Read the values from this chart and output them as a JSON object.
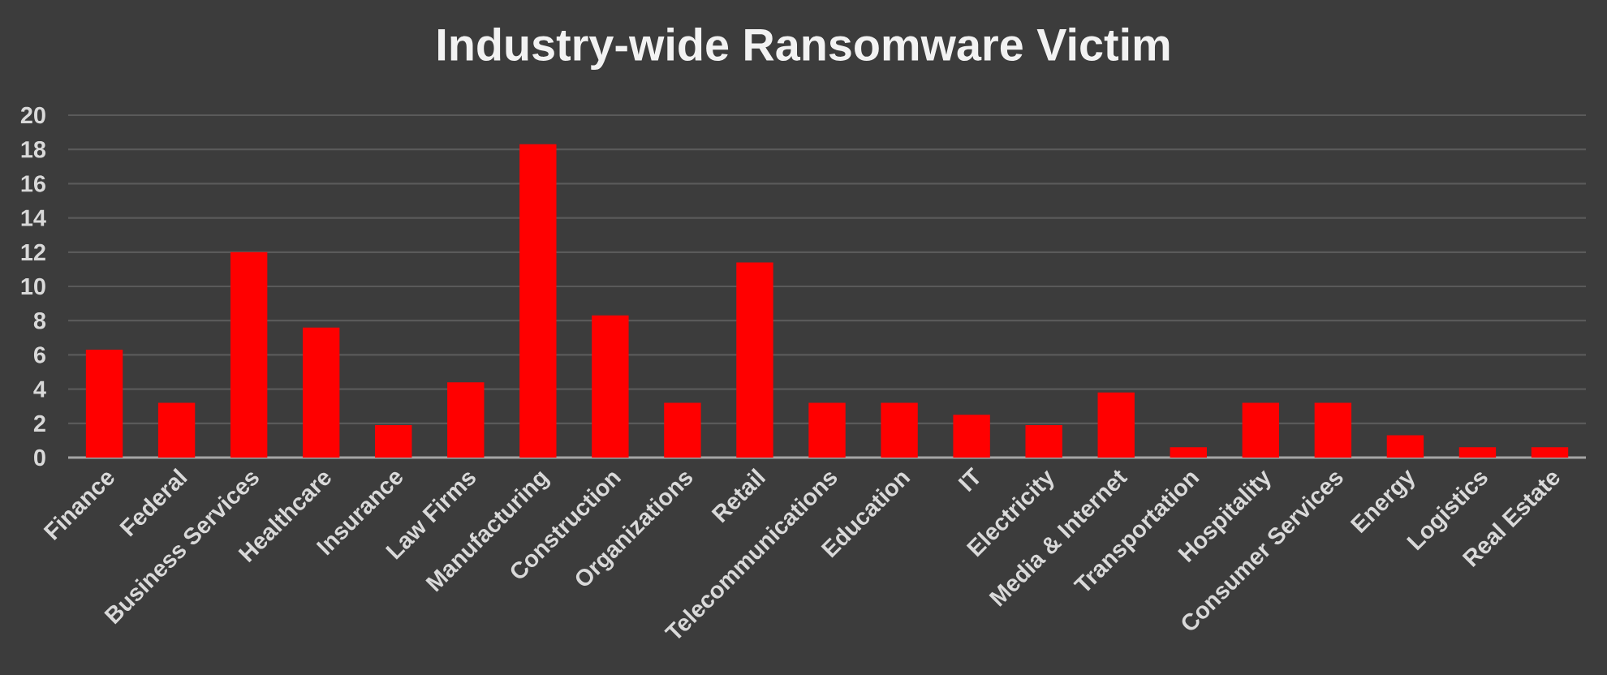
{
  "chart_data": {
    "type": "bar",
    "title": "Industry-wide Ransomware Victim",
    "categories": [
      "Finance",
      "Federal",
      "Business Services",
      "Healthcare",
      "Insurance",
      "Law Firms",
      "Manufacturing",
      "Construction",
      "Organizations",
      "Retail",
      "Telecommunications",
      "Education",
      "IT",
      "Electricity",
      "Media & Internet",
      "Transportation",
      "Hospitality",
      "Consumer Services",
      "Energy",
      "Logistics",
      "Real Estate"
    ],
    "values": [
      6.3,
      3.2,
      12.0,
      7.6,
      1.9,
      4.4,
      18.3,
      8.3,
      3.2,
      11.4,
      3.2,
      3.2,
      2.5,
      1.9,
      3.8,
      0.6,
      3.2,
      3.2,
      1.3,
      0.6,
      0.6
    ],
    "color": "#ff0000",
    "ylim": [
      0,
      20
    ],
    "yticks": [
      0,
      2,
      4,
      6,
      8,
      10,
      12,
      14,
      16,
      18,
      20
    ],
    "grid": "y"
  }
}
